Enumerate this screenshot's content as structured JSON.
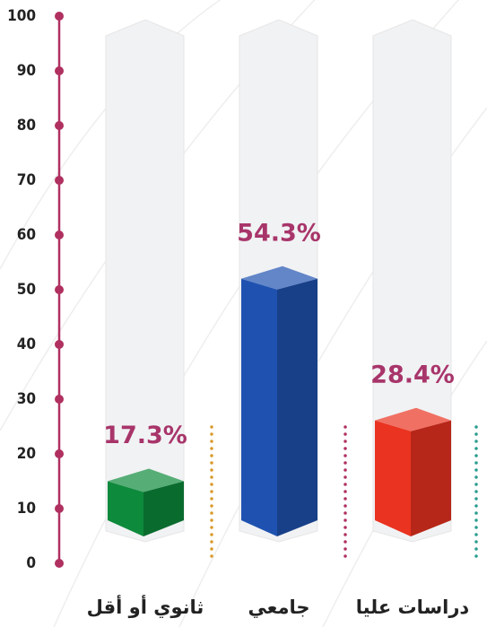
{
  "chart_data": {
    "type": "bar",
    "categories": [
      "ثانوي أو أقل",
      "جامعي",
      "دراسات عليا"
    ],
    "values": [
      17.3,
      54.3,
      28.4
    ],
    "value_labels": [
      "17.3%",
      "54.3%",
      "28.4%"
    ],
    "colors": [
      "#0e8a3c",
      "#1f52b0",
      "#ea3320"
    ],
    "ylim": [
      0,
      100
    ],
    "yticks": [
      0,
      10,
      20,
      30,
      40,
      50,
      60,
      70,
      80,
      90,
      100
    ]
  }
}
